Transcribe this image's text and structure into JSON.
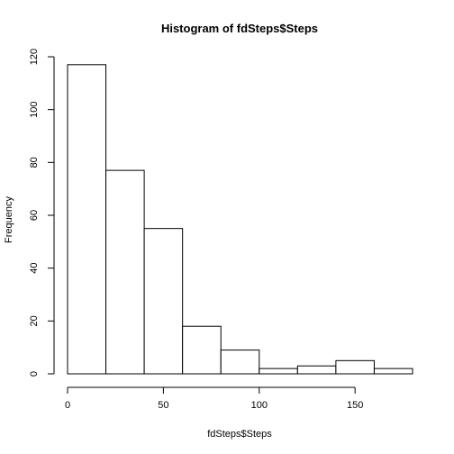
{
  "chart_data": {
    "type": "bar",
    "title": "Histogram of fdSteps$Steps",
    "xlabel": "fdSteps$Steps",
    "ylabel": "Frequency",
    "bins": [
      {
        "start": 0,
        "end": 20,
        "count": 117
      },
      {
        "start": 20,
        "end": 40,
        "count": 77
      },
      {
        "start": 40,
        "end": 60,
        "count": 55
      },
      {
        "start": 60,
        "end": 80,
        "count": 18
      },
      {
        "start": 80,
        "end": 100,
        "count": 9
      },
      {
        "start": 100,
        "end": 120,
        "count": 2
      },
      {
        "start": 120,
        "end": 140,
        "count": 3
      },
      {
        "start": 140,
        "end": 160,
        "count": 5
      },
      {
        "start": 160,
        "end": 180,
        "count": 2
      }
    ],
    "xlim": [
      0,
      180
    ],
    "ylim": [
      0,
      120
    ],
    "xticks": [
      0,
      50,
      100,
      150
    ],
    "yticks": [
      0,
      20,
      40,
      60,
      80,
      100,
      120
    ],
    "grid": false,
    "legend": "none"
  }
}
